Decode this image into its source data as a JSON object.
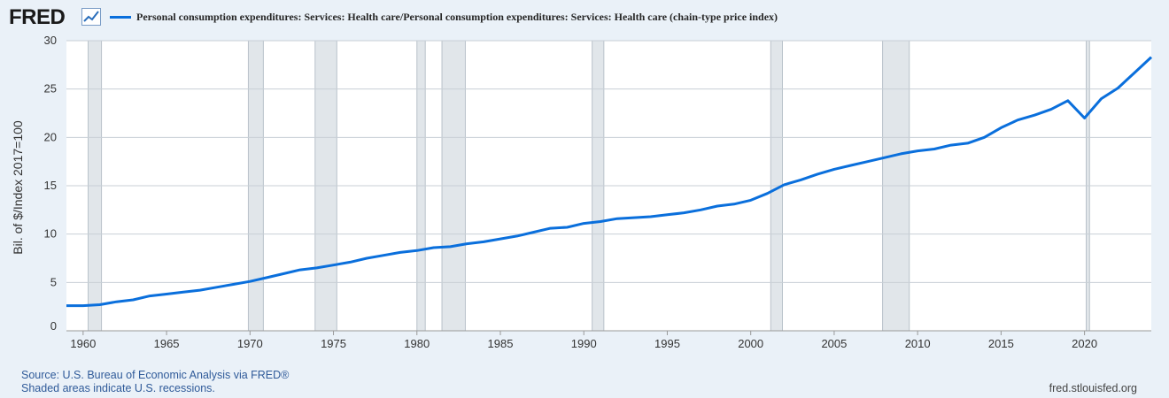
{
  "brand": {
    "name": "FRED",
    "icon": "line-chart-icon"
  },
  "legend": {
    "label": "Personal consumption expenditures: Services: Health care/Personal consumption expenditures: Services: Health care (chain-type price index)",
    "color": "#0a6fdc"
  },
  "footer": {
    "source": "Source: U.S. Bureau of Economic Analysis via FRED®",
    "note": "Shaded areas indicate U.S. recessions.",
    "site": "fred.stlouisfed.org"
  },
  "chart_data": {
    "type": "line",
    "ylabel": "Bil. of $/Index 2017=100",
    "xlabel": "",
    "title": "",
    "xlim": [
      1959,
      2024
    ],
    "ylim": [
      0,
      30
    ],
    "x_ticks": [
      "1960",
      "1965",
      "1970",
      "1975",
      "1980",
      "1985",
      "1990",
      "1995",
      "2000",
      "2005",
      "2010",
      "2015",
      "2020"
    ],
    "y_ticks": [
      "0",
      "5",
      "10",
      "15",
      "20",
      "25",
      "30"
    ],
    "grid": "horizontal",
    "recession_color": "#e1e6ea",
    "recessions": [
      [
        1960.3,
        1961.1
      ],
      [
        1969.9,
        1970.8
      ],
      [
        1973.9,
        1975.2
      ],
      [
        1980.0,
        1980.5
      ],
      [
        1981.5,
        1982.9
      ],
      [
        1990.5,
        1991.2
      ],
      [
        2001.2,
        2001.9
      ],
      [
        2007.9,
        2009.5
      ],
      [
        2020.1,
        2020.3
      ]
    ],
    "series": [
      {
        "color": "#0a6fdc",
        "x": [
          1959,
          1960,
          1961,
          1962,
          1963,
          1964,
          1965,
          1966,
          1967,
          1968,
          1969,
          1970,
          1971,
          1972,
          1973,
          1974,
          1975,
          1976,
          1977,
          1978,
          1979,
          1980,
          1981,
          1982,
          1983,
          1984,
          1985,
          1986,
          1987,
          1988,
          1989,
          1990,
          1991,
          1992,
          1993,
          1994,
          1995,
          1996,
          1997,
          1998,
          1999,
          2000,
          2001,
          2002,
          2003,
          2004,
          2005,
          2006,
          2007,
          2008,
          2009,
          2010,
          2011,
          2012,
          2013,
          2014,
          2015,
          2016,
          2017,
          2018,
          2019,
          2020,
          2021,
          2022,
          2023,
          2024
        ],
        "values": [
          2.6,
          2.6,
          2.7,
          3.0,
          3.2,
          3.6,
          3.8,
          4.0,
          4.2,
          4.5,
          4.8,
          5.1,
          5.5,
          5.9,
          6.3,
          6.5,
          6.8,
          7.1,
          7.5,
          7.8,
          8.1,
          8.3,
          8.6,
          8.7,
          9.0,
          9.2,
          9.5,
          9.8,
          10.2,
          10.6,
          10.7,
          11.1,
          11.3,
          11.6,
          11.7,
          11.8,
          12.0,
          12.2,
          12.5,
          12.9,
          13.1,
          13.5,
          14.2,
          15.1,
          15.6,
          16.2,
          16.7,
          17.1,
          17.5,
          17.9,
          18.3,
          18.6,
          18.8,
          19.2,
          19.4,
          20.0,
          21.0,
          21.8,
          22.3,
          22.9,
          23.8,
          22.0,
          24.0,
          25.1,
          26.7,
          28.3
        ]
      }
    ]
  }
}
